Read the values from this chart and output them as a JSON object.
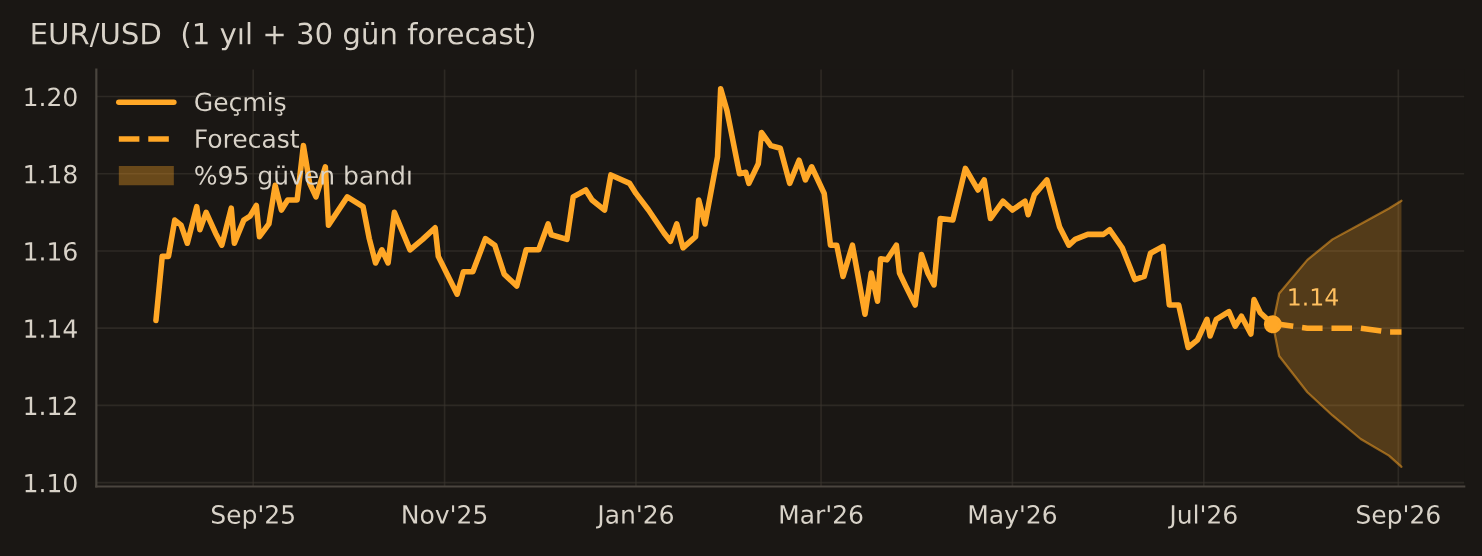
{
  "chart_data": {
    "type": "line",
    "title": "EUR/USD  (1 yıl + 30 gün forecast)",
    "xlim": [
      "2025-07-13",
      "2026-09-22"
    ],
    "ylim": [
      1.099,
      1.207
    ],
    "xticks": [
      {
        "value": "2025-09-01",
        "label": "Sep'25"
      },
      {
        "value": "2025-11-01",
        "label": "Nov'25"
      },
      {
        "value": "2026-01-01",
        "label": "Jan'26"
      },
      {
        "value": "2026-03-01",
        "label": "Mar'26"
      },
      {
        "value": "2026-05-01",
        "label": "May'26"
      },
      {
        "value": "2026-07-01",
        "label": "Jul'26"
      },
      {
        "value": "2026-09-01",
        "label": "Sep'26"
      }
    ],
    "yticks": [
      {
        "value": 1.1,
        "label": "1.10"
      },
      1.12,
      1.14,
      1.16,
      1.18,
      {
        "value": 1.2,
        "label": "1.20"
      }
    ],
    "grid": true,
    "legend": "top left",
    "annotations": [
      {
        "text": "1.14",
        "x": "2026-07-23",
        "y": 1.141
      },
      "%95 güven bandı"
    ],
    "series": [
      {
        "name": "Geçmiş",
        "color": "#ffa726",
        "line_style": "solid",
        "x": [
          "2025-08-01",
          "2025-08-03",
          "2025-08-05",
          "2025-08-07",
          "2025-08-09",
          "2025-08-11",
          "2025-08-14",
          "2025-08-15",
          "2025-08-17",
          "2025-08-20",
          "2025-08-22",
          "2025-08-25",
          "2025-08-26",
          "2025-08-29",
          "2025-08-31",
          "2025-09-02",
          "2025-09-03",
          "2025-09-06",
          "2025-09-08",
          "2025-09-10",
          "2025-09-12",
          "2025-09-15",
          "2025-09-17",
          "2025-09-19",
          "2025-09-21",
          "2025-09-24",
          "2025-09-25",
          "2025-10-01",
          "2025-10-06",
          "2025-10-08",
          "2025-10-10",
          "2025-10-12",
          "2025-10-14",
          "2025-10-16",
          "2025-10-21",
          "2025-10-25",
          "2025-10-29",
          "2025-10-30",
          "2025-11-05",
          "2025-11-07",
          "2025-11-10",
          "2025-11-14",
          "2025-11-17",
          "2025-11-20",
          "2025-11-24",
          "2025-11-27",
          "2025-12-01",
          "2025-12-04",
          "2025-12-05",
          "2025-12-10",
          "2025-12-12",
          "2025-12-16",
          "2025-12-18",
          "2025-12-22",
          "2025-12-24",
          "2025-12-30",
          "2026-01-01",
          "2026-01-05",
          "2026-01-10",
          "2026-01-12",
          "2026-01-14",
          "2026-01-16",
          "2026-01-20",
          "2026-01-21",
          "2026-01-23",
          "2026-01-27",
          "2026-01-28",
          "2026-01-30",
          "2026-02-03",
          "2026-02-05",
          "2026-02-06",
          "2026-02-09",
          "2026-02-10",
          "2026-02-13",
          "2026-02-16",
          "2026-02-19",
          "2026-02-22",
          "2026-02-24",
          "2026-02-26",
          "2026-03-02",
          "2026-03-04",
          "2026-03-06",
          "2026-03-08",
          "2026-03-11",
          "2026-03-15",
          "2026-03-17",
          "2026-03-19",
          "2026-03-20",
          "2026-03-22",
          "2026-03-25",
          "2026-03-26",
          "2026-03-28",
          "2026-03-31",
          "2026-04-02",
          "2026-04-04",
          "2026-04-06",
          "2026-04-08",
          "2026-04-12",
          "2026-04-16",
          "2026-04-20",
          "2026-04-22",
          "2026-04-24",
          "2026-04-28",
          "2026-05-01",
          "2026-05-05",
          "2026-05-06",
          "2026-05-08",
          "2026-05-12",
          "2026-05-16",
          "2026-05-19",
          "2026-05-21",
          "2026-05-25",
          "2026-05-30",
          "2026-06-01",
          "2026-06-05",
          "2026-06-09",
          "2026-06-12",
          "2026-06-14",
          "2026-06-18",
          "2026-06-20",
          "2026-06-23",
          "2026-06-26",
          "2026-06-29",
          "2026-07-02",
          "2026-07-03",
          "2026-07-05",
          "2026-07-09",
          "2026-07-11",
          "2026-07-13",
          "2026-07-16",
          "2026-07-17",
          "2026-07-19",
          "2026-07-23"
        ],
        "values": [
          1.142,
          1.1586,
          1.1586,
          1.168,
          1.1667,
          1.162,
          1.1715,
          1.1655,
          1.17,
          1.1646,
          1.1615,
          1.1711,
          1.162,
          1.168,
          1.169,
          1.1718,
          1.1637,
          1.167,
          1.177,
          1.1706,
          1.1732,
          1.1732,
          1.1873,
          1.1775,
          1.174,
          1.1818,
          1.1667,
          1.174,
          1.1715,
          1.1632,
          1.1569,
          1.1603,
          1.1569,
          1.17,
          1.1603,
          1.163,
          1.166,
          1.1586,
          1.1488,
          1.1546,
          1.1546,
          1.1632,
          1.1615,
          1.154,
          1.1509,
          1.1603,
          1.1603,
          1.167,
          1.1642,
          1.163,
          1.174,
          1.1758,
          1.1732,
          1.1706,
          1.1797,
          1.1775,
          1.1749,
          1.1706,
          1.1646,
          1.1625,
          1.167,
          1.1608,
          1.1637,
          1.1732,
          1.167,
          1.1844,
          1.202,
          1.1964,
          1.18,
          1.1804,
          1.1775,
          1.1826,
          1.1907,
          1.1873,
          1.1866,
          1.1775,
          1.1835,
          1.1784,
          1.1818,
          1.1749,
          1.1615,
          1.1615,
          1.1534,
          1.1615,
          1.1436,
          1.1543,
          1.147,
          1.158,
          1.1577,
          1.1615,
          1.1543,
          1.1509,
          1.146,
          1.1591,
          1.1543,
          1.1512,
          1.1684,
          1.168,
          1.1814,
          1.1758,
          1.1784,
          1.1684,
          1.1729,
          1.1706,
          1.1729,
          1.1694,
          1.1746,
          1.1784,
          1.1663,
          1.1615,
          1.163,
          1.1643,
          1.1643,
          1.1655,
          1.1608,
          1.1526,
          1.1534,
          1.1594,
          1.1612,
          1.146,
          1.146,
          1.135,
          1.137,
          1.1423,
          1.138,
          1.1423,
          1.1443,
          1.1405,
          1.1431,
          1.1385,
          1.1474,
          1.144,
          1.141
        ]
      },
      {
        "name": "Forecast",
        "color": "#ffa726",
        "line_style": "dashed",
        "x": [
          "2026-07-23",
          "2026-07-25",
          "2026-08-03",
          "2026-08-11",
          "2026-08-20",
          "2026-08-29",
          "2026-09-02"
        ],
        "values": [
          1.141,
          1.141,
          1.14,
          1.14,
          1.14,
          1.139,
          1.139
        ],
        "upper": [
          1.141,
          1.149,
          1.1577,
          1.163,
          1.167,
          1.171,
          1.173
        ],
        "lower": [
          1.141,
          1.1328,
          1.1234,
          1.1174,
          1.1113,
          1.107,
          1.1041
        ]
      },
      {
        "type": "scatter",
        "color": "#ffa726",
        "marker": "circle",
        "x": [
          "2026-07-23"
        ],
        "values": [
          1.141
        ]
      }
    ]
  }
}
